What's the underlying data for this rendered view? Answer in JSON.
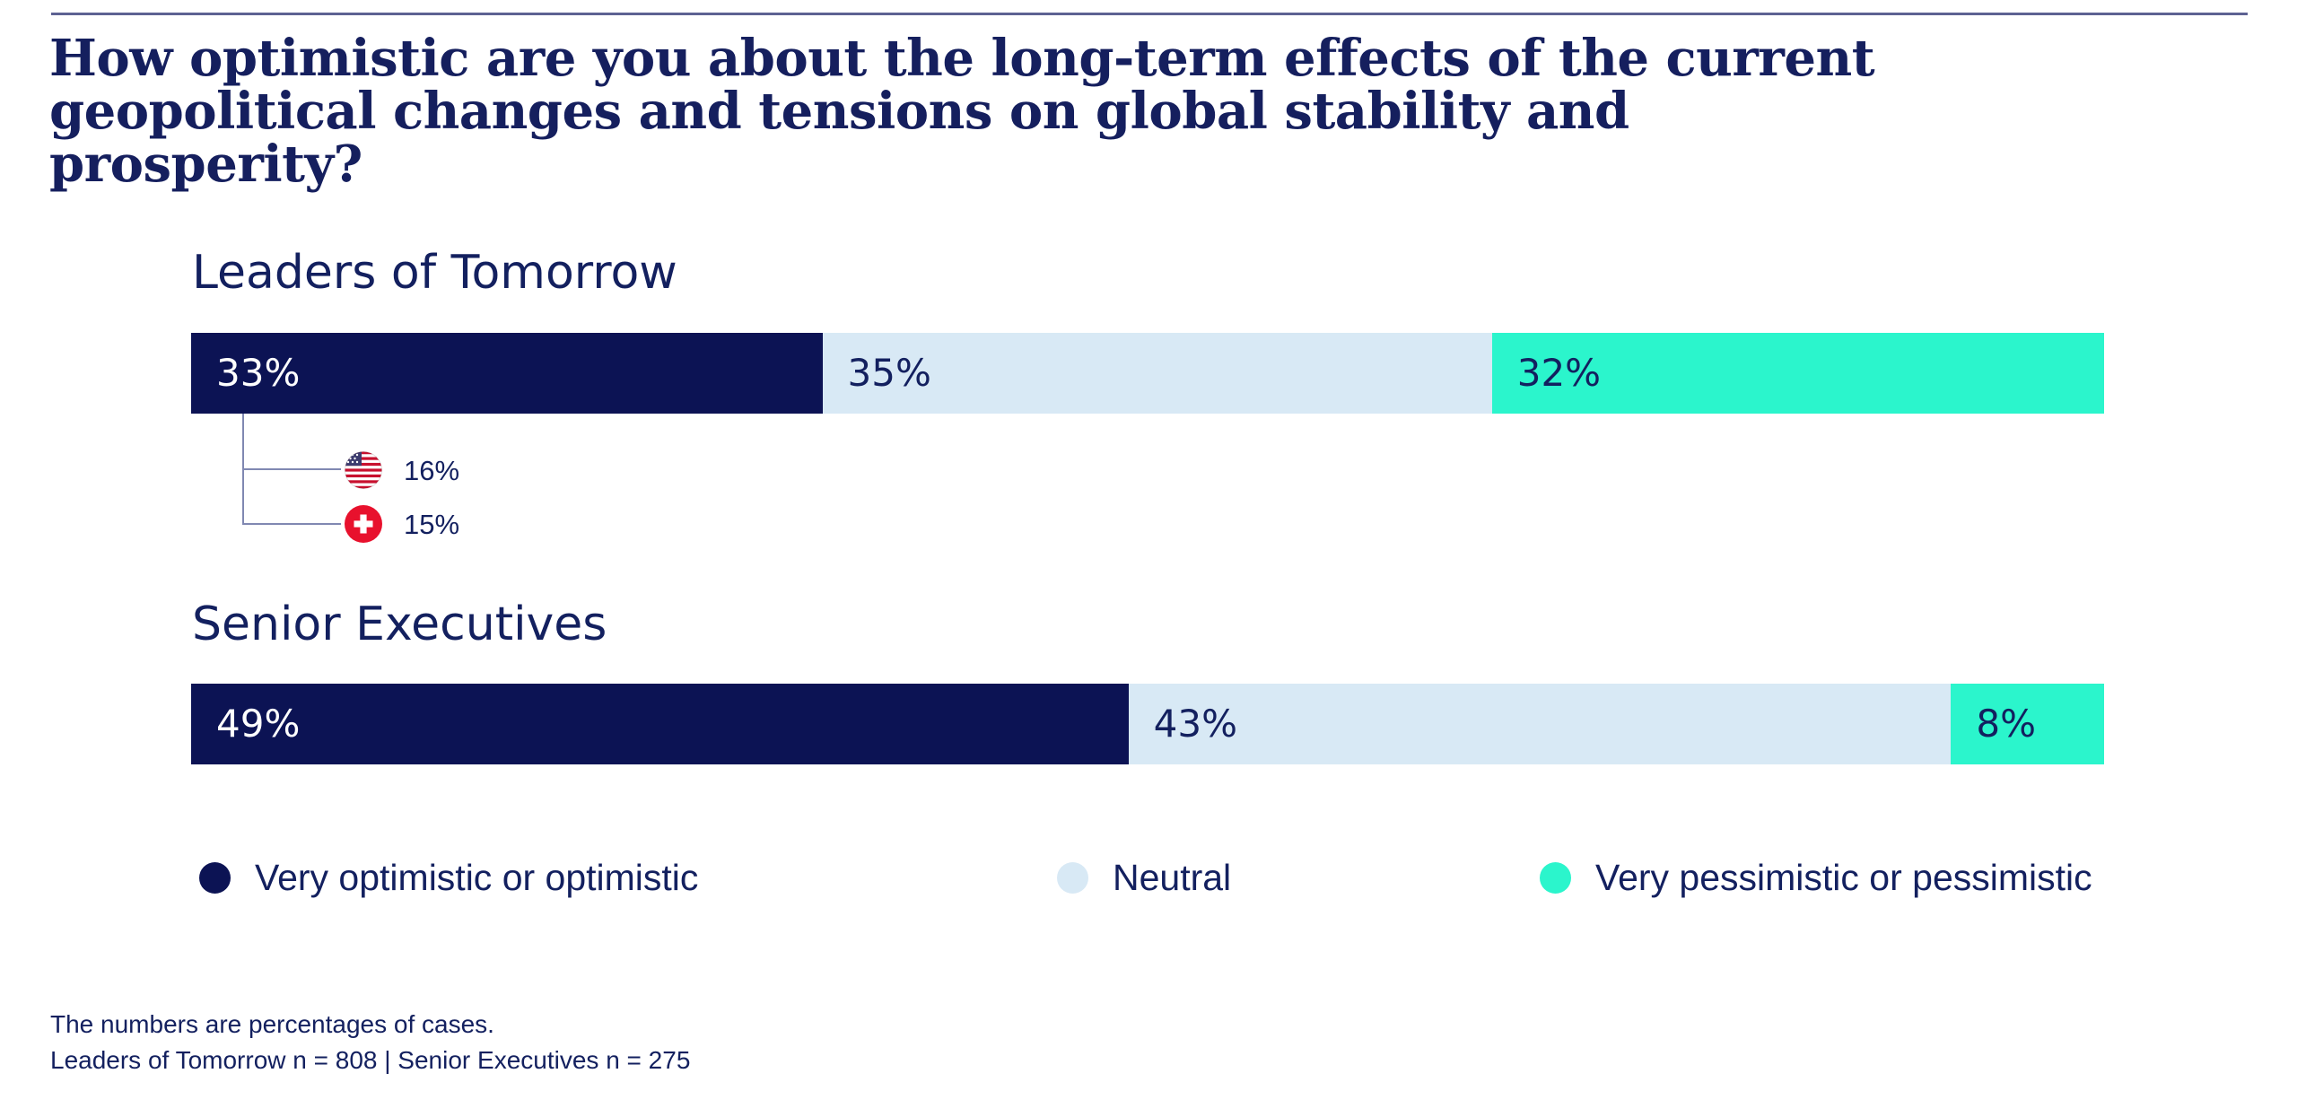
{
  "title": {
    "line1": "How optimistic are you about the long-term effects of the current",
    "line2": "geopolitical changes and tensions on global stability and prosperity?"
  },
  "colors": {
    "optimistic": "#0c1354",
    "neutral": "#d8e9f5",
    "pessimistic": "#2bf5cc",
    "text": "#13205f",
    "rule": "#5d6292",
    "connector": "#8088b2"
  },
  "sections": [
    {
      "heading": "Leaders of Tomorrow",
      "segments": [
        {
          "label": "33%",
          "value": 33,
          "bg": "#0c1354",
          "fg": "#ffffff"
        },
        {
          "label": "35%",
          "value": 35,
          "bg": "#d8e9f5",
          "fg": "#13205f"
        },
        {
          "label": "32%",
          "value": 32,
          "bg": "#2bf5cc",
          "fg": "#13205f"
        }
      ],
      "breakdown": [
        {
          "country": "United States",
          "label": "16%"
        },
        {
          "country": "Switzerland",
          "label": "15%"
        }
      ]
    },
    {
      "heading": "Senior Executives",
      "segments": [
        {
          "label": "49%",
          "value": 49,
          "bg": "#0c1354",
          "fg": "#ffffff"
        },
        {
          "label": "43%",
          "value": 43,
          "bg": "#d8e9f5",
          "fg": "#13205f"
        },
        {
          "label": "8%",
          "value": 8,
          "bg": "#2bf5cc",
          "fg": "#13205f"
        }
      ]
    }
  ],
  "legend": [
    {
      "label": "Very optimistic or optimistic",
      "color": "#0c1354"
    },
    {
      "label": "Neutral",
      "color": "#d8e9f5"
    },
    {
      "label": "Very pessimistic or pessimistic",
      "color": "#2bf5cc"
    }
  ],
  "footnote": {
    "line1": "The numbers are percentages of cases.",
    "line2": "Leaders of Tomorrow n = 808 | Senior Executives n = 275"
  },
  "chart_data": {
    "type": "bar",
    "subtype": "horizontal-stacked",
    "title": "How optimistic are you about the long-term effects of the current geopolitical changes and tensions on global stability and prosperity?",
    "categories": [
      "Leaders of Tomorrow",
      "Senior Executives"
    ],
    "series": [
      {
        "name": "Very optimistic or optimistic",
        "values": [
          33,
          49
        ],
        "color": "#0c1354"
      },
      {
        "name": "Neutral",
        "values": [
          35,
          43
        ],
        "color": "#d8e9f5"
      },
      {
        "name": "Very pessimistic or pessimistic",
        "values": [
          32,
          8
        ],
        "color": "#2bf5cc"
      }
    ],
    "annotations": [
      {
        "category": "Leaders of Tomorrow",
        "series": "Very optimistic or optimistic",
        "breakdown": [
          {
            "group": "United States",
            "value": 16
          },
          {
            "group": "Switzerland",
            "value": 15
          }
        ]
      }
    ],
    "unit": "%",
    "xlim": [
      0,
      100
    ],
    "grid": false,
    "legend_position": "bottom",
    "notes": [
      "The numbers are percentages of cases.",
      "Leaders of Tomorrow n = 808 | Senior Executives n = 275"
    ]
  }
}
